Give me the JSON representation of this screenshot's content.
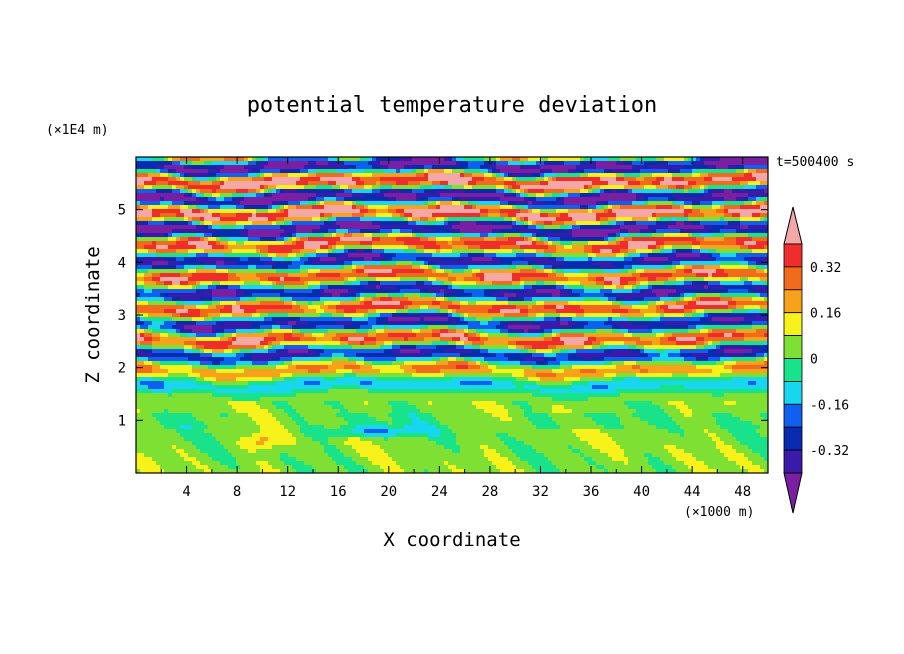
{
  "chart_data": {
    "type": "heatmap",
    "title": "potential temperature deviation",
    "xlabel": "X coordinate",
    "ylabel": "Z coordinate",
    "x_unit": "(×1000 m)",
    "y_unit": "(×1E4 m)",
    "time_label": "t=500400 s",
    "xlim": [
      0,
      50
    ],
    "ylim": [
      0,
      6
    ],
    "x_ticks": [
      "4",
      "8",
      "12",
      "16",
      "20",
      "24",
      "28",
      "32",
      "36",
      "40",
      "44",
      "48"
    ],
    "y_ticks": [
      "1",
      "2",
      "3",
      "4",
      "5"
    ],
    "colorbar": {
      "tick_labels": [
        "0.32",
        "0.16",
        "0",
        "-0.16",
        "-0.32"
      ],
      "levels": [
        -0.4,
        -0.32,
        -0.24,
        -0.16,
        -0.08,
        0,
        0.08,
        0.16,
        0.24,
        0.32,
        0.4
      ],
      "colors": [
        "#7a1fa2",
        "#3a1aa8",
        "#0a2bb0",
        "#0f5ff0",
        "#17d6f0",
        "#19e38a",
        "#7fe034",
        "#f7f21a",
        "#f7a21a",
        "#f26a1c",
        "#ef2d2d",
        "#f3a7a7"
      ]
    }
  }
}
